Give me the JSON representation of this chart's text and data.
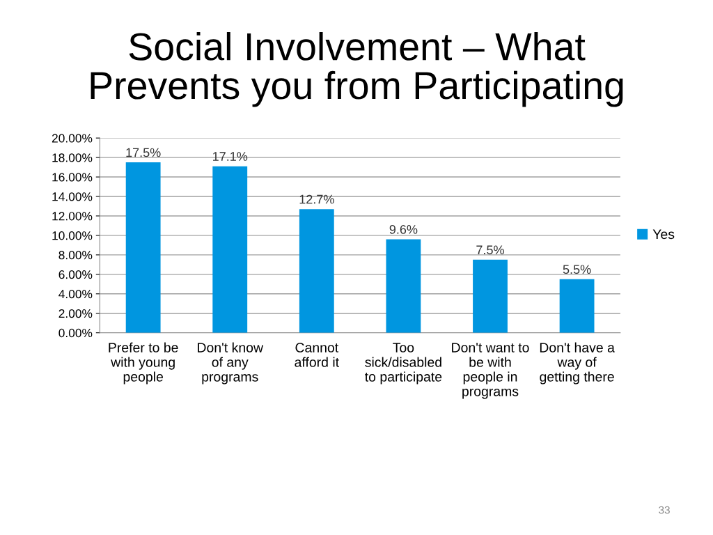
{
  "chart_data": {
    "type": "bar",
    "title": "Social Involvement – What\nPrevents you from Participating",
    "categories": [
      "Prefer to be\nwith young\npeople",
      "Don't know\nof any\nprograms",
      "Cannot\nafford it",
      "Too\nsick/disabled\nto participate",
      "Don't want to\nbe with\npeople in\nprograms",
      "Don't have a\nway of\ngetting there"
    ],
    "series": [
      {
        "name": "Yes",
        "color": "#0096e0",
        "values": [
          17.5,
          17.1,
          12.7,
          9.6,
          7.5,
          5.5
        ],
        "value_labels": [
          "17.5%",
          "17.1%",
          "12.7%",
          "9.6%",
          "7.5%",
          "5.5%"
        ]
      }
    ],
    "ylim": [
      0,
      20
    ],
    "yticks": [
      {
        "value": 0,
        "label": "0.00%"
      },
      {
        "value": 2,
        "label": "2.00%"
      },
      {
        "value": 4,
        "label": "4.00%"
      },
      {
        "value": 6,
        "label": "6.00%"
      },
      {
        "value": 8,
        "label": "8.00%"
      },
      {
        "value": 10,
        "label": "10.00%"
      },
      {
        "value": 12,
        "label": "12.00%"
      },
      {
        "value": 14,
        "label": "14.00%"
      },
      {
        "value": 16,
        "label": "16.00%"
      },
      {
        "value": 18,
        "label": "18.00%"
      },
      {
        "value": 20,
        "label": "20.00%"
      }
    ],
    "grid": "y",
    "legend": "right",
    "annotations": [
      "33"
    ]
  }
}
